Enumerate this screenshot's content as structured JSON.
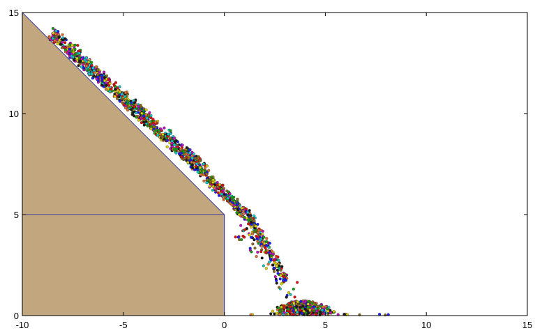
{
  "chart_data": {
    "type": "scatter",
    "title": "",
    "xlabel": "",
    "ylabel": "",
    "xlim": [
      -10,
      15
    ],
    "ylim": [
      0,
      15
    ],
    "xticks": [
      -10,
      -5,
      0,
      5,
      10,
      15
    ],
    "yticks": [
      0,
      5,
      10,
      15
    ],
    "grid": false,
    "legend": "none",
    "colors": {
      "sand_fill": "#c2a67e",
      "outline": "#3b3b9a",
      "axis": "#000000",
      "particles": [
        "#1a1aff",
        "#e01010",
        "#10a010",
        "#10c8c8",
        "#d8d000",
        "#c010c0",
        "#1a1a1a",
        "#8a6a20",
        "#e07030"
      ]
    },
    "sand_region": {
      "polygon": [
        [
          -10,
          15
        ],
        [
          0,
          5
        ],
        [
          0,
          0
        ],
        [
          -10,
          0
        ]
      ],
      "inner_box": [
        [
          -10,
          5
        ],
        [
          0,
          5
        ],
        [
          0,
          0
        ]
      ]
    },
    "particle_bands": [
      {
        "name": "",
        "from": [
          -8.6,
          13.7
        ],
        "to": [
          -1.0,
          6.8
        ],
        "width": 0.9,
        "count": 900
      },
      {
        "name": "",
        "from": [
          -1.0,
          6.7
        ],
        "to": [
          1.4,
          4.4
        ],
        "width": 0.7,
        "count": 260
      },
      {
        "name": "",
        "from": [
          1.2,
          4.6
        ],
        "to": [
          3.0,
          1.5
        ],
        "width": 0.6,
        "count": 160
      },
      {
        "name": "",
        "from": [
          0.4,
          4.0
        ],
        "to": [
          3.5,
          0.3
        ],
        "width": 1.6,
        "count": 60
      }
    ],
    "particle_pile": {
      "center_x": 3.9,
      "spread_x": 1.4,
      "max_height": 0.7,
      "count": 380,
      "x_range": [
        1.2,
        8.2
      ]
    }
  }
}
